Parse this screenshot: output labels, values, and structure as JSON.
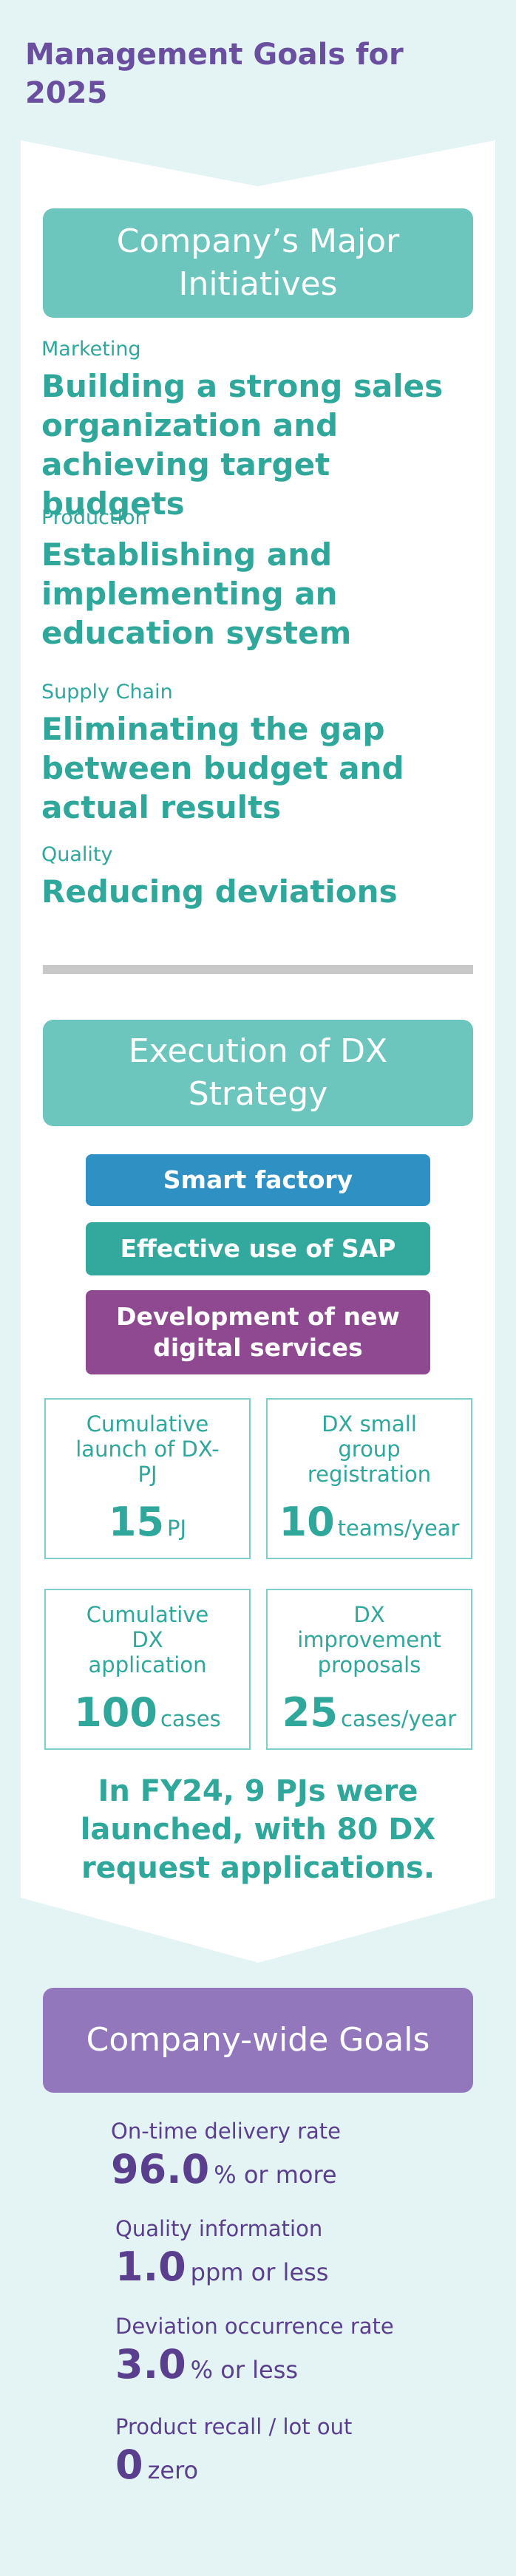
{
  "page_title": "Management Goals for 2025",
  "initiatives": {
    "header": "Company’s Major Initiatives",
    "items": [
      {
        "category": "Marketing",
        "text": "Building a strong sales organization and achieving target budgets"
      },
      {
        "category": "Production",
        "text": "Establishing and implementing an education system"
      },
      {
        "category": "Supply Chain",
        "text": "Eliminating the gap between budget and actual results"
      },
      {
        "category": "Quality",
        "text": "Reducing deviations"
      }
    ]
  },
  "dx": {
    "header": "Execution of DX Strategy",
    "pills": [
      {
        "label": "Smart factory"
      },
      {
        "label": "Effective use of SAP"
      },
      {
        "label": "Development of new digital services"
      }
    ],
    "stats": [
      {
        "label": "Cumulative launch of DX-PJ",
        "value": "15",
        "unit": "PJ"
      },
      {
        "label": "DX small group registration",
        "value": "10",
        "unit": "teams/year"
      },
      {
        "label": "Cumulative DX application",
        "value": "100",
        "unit": "cases"
      },
      {
        "label": "DX improvement proposals",
        "value": "25",
        "unit": "cases/year"
      }
    ],
    "note": "In FY24, 9 PJs were launched, with 80 DX request applications."
  },
  "goals": {
    "header": "Company-wide Goals",
    "items": [
      {
        "label": "On-time delivery rate",
        "value": "96.0",
        "unit": "% or more"
      },
      {
        "label": "Quality information",
        "value": "1.0",
        "unit": "ppm or less"
      },
      {
        "label": "Deviation occurrence rate",
        "value": "3.0",
        "unit": "% or less"
      },
      {
        "label": "Product recall / lot out",
        "value": "0",
        "unit": "zero"
      }
    ]
  },
  "colors": {
    "teal": "#2fa79b",
    "teal_header": "#6dc6bd",
    "purple": "#5b3f8f",
    "purple_header": "#9277bd",
    "background": "#e4f3f3"
  }
}
